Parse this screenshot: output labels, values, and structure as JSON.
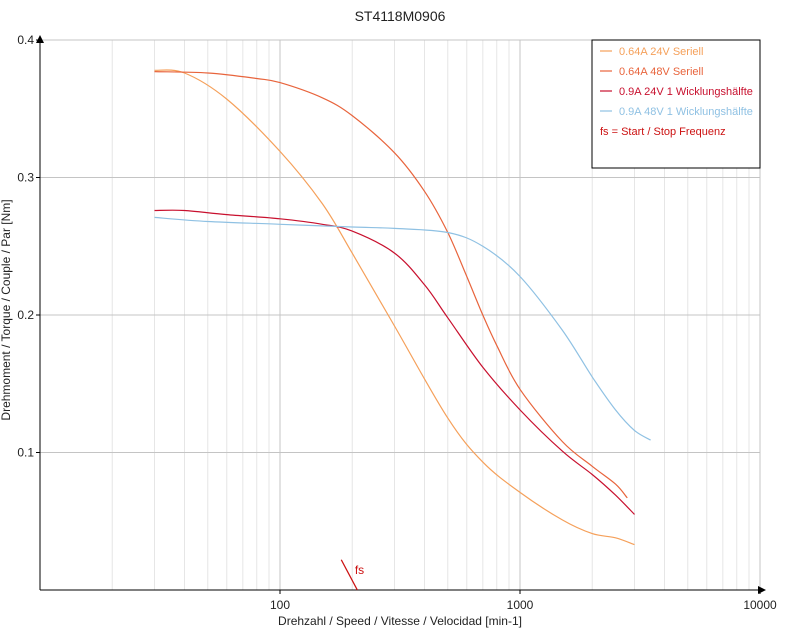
{
  "chart_data": {
    "type": "line",
    "title": "ST4118M0906",
    "xlabel": "Drehzahl / Speed / Vitesse / Velocidad [min-1]",
    "ylabel": "Drehmoment / Torque / Couple / Par [Nm]",
    "xscale": "log",
    "xlim": [
      10,
      10000
    ],
    "ylim": [
      0,
      0.4
    ],
    "x_ticks": [
      100,
      1000,
      10000
    ],
    "x_tick_labels": [
      "100",
      "1000",
      "10000"
    ],
    "y_ticks": [
      0.1,
      0.2,
      0.3,
      0.4
    ],
    "y_tick_labels": [
      "0.1",
      "0.2",
      "0.3",
      "0.4"
    ],
    "grid": true,
    "legend_position": "top-right",
    "series": [
      {
        "name": "0.64A  24V  Seriell",
        "color": "#f5a05a",
        "x": [
          30,
          40,
          60,
          100,
          150,
          200,
          300,
          500,
          700,
          1000,
          1500,
          2000,
          2500,
          3000
        ],
        "y": [
          0.378,
          0.376,
          0.357,
          0.319,
          0.281,
          0.245,
          0.192,
          0.125,
          0.093,
          0.071,
          0.051,
          0.041,
          0.038,
          0.033
        ]
      },
      {
        "name": "0.64A  48V  Seriell",
        "color": "#e8643c",
        "x": [
          30,
          50,
          80,
          100,
          150,
          200,
          300,
          400,
          500,
          600,
          700,
          800,
          1000,
          1500,
          2000,
          2500,
          2800
        ],
        "y": [
          0.377,
          0.376,
          0.372,
          0.369,
          0.358,
          0.345,
          0.318,
          0.29,
          0.26,
          0.228,
          0.2,
          0.178,
          0.146,
          0.108,
          0.09,
          0.077,
          0.067
        ]
      },
      {
        "name": "0.9A  24V  1 Wicklungshälfte",
        "color": "#c8102e",
        "x": [
          30,
          40,
          60,
          100,
          150,
          200,
          300,
          400,
          500,
          700,
          1000,
          1500,
          2000,
          2500,
          3000
        ],
        "y": [
          0.276,
          0.276,
          0.273,
          0.27,
          0.266,
          0.261,
          0.245,
          0.222,
          0.198,
          0.162,
          0.131,
          0.101,
          0.084,
          0.069,
          0.055
        ]
      },
      {
        "name": "0.9A  48V  1 Wicklungshälfte",
        "color": "#8fc1e3",
        "x": [
          30,
          50,
          100,
          200,
          300,
          500,
          700,
          1000,
          1500,
          2000,
          2500,
          3000,
          3500
        ],
        "y": [
          0.271,
          0.268,
          0.266,
          0.264,
          0.263,
          0.26,
          0.25,
          0.228,
          0.189,
          0.155,
          0.131,
          0.116,
          0.109
        ]
      }
    ],
    "annotations": [
      {
        "text": "fs = Start / Stop Frequenz",
        "color": "#cc1111",
        "where": "legend"
      },
      {
        "text": "fs",
        "color": "#cc1111",
        "x": 205,
        "y": 0.006,
        "line_from": [
          180,
          0.022
        ],
        "line_to": [
          210,
          0
        ]
      }
    ]
  }
}
